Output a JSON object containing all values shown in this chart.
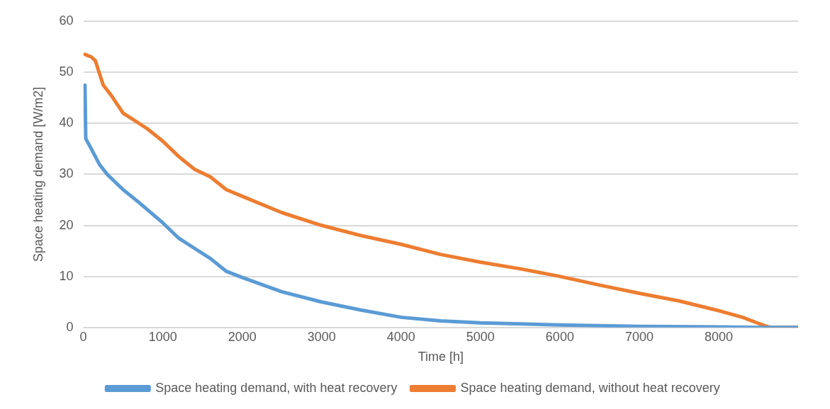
{
  "chart_data": {
    "type": "line",
    "xlabel": "Time [h]",
    "ylabel": "Space heating demand [W/m2]",
    "xlim": [
      0,
      9000
    ],
    "xticks": [
      0,
      1000,
      2000,
      3000,
      4000,
      5000,
      6000,
      7000,
      8000
    ],
    "ylim": [
      0,
      60
    ],
    "yticks": [
      0,
      10,
      20,
      30,
      40,
      50,
      60
    ],
    "grid": "y",
    "legend": "bottom",
    "marker": "none",
    "line_style": "solid",
    "series": [
      {
        "name": "Space heating demand, with heat recovery",
        "color": "#5b9bd5",
        "x": [
          20,
          30,
          100,
          200,
          300,
          500,
          700,
          1000,
          1200,
          1400,
          1600,
          1800,
          2000,
          2500,
          3000,
          3500,
          4000,
          4500,
          5000,
          6000,
          7000,
          8000,
          8500,
          9000
        ],
        "values": [
          47.5,
          37,
          35,
          32,
          30,
          27,
          24.5,
          20.5,
          17.5,
          15.5,
          13.5,
          11,
          9.8,
          7,
          5,
          3.4,
          2,
          1.3,
          0.9,
          0.5,
          0.2,
          0.1,
          0,
          0
        ]
      },
      {
        "name": "Space heating demand, without heat recovery",
        "color": "#ed7d31",
        "x": [
          20,
          100,
          150,
          250,
          350,
          500,
          800,
          1000,
          1200,
          1400,
          1600,
          1800,
          2000,
          2500,
          3000,
          3500,
          4000,
          4500,
          5000,
          5500,
          6000,
          6500,
          7000,
          7500,
          8000,
          8300,
          8500,
          8650,
          9000
        ],
        "values": [
          53.5,
          53,
          52.3,
          47.5,
          45.5,
          42,
          39,
          36.5,
          33.5,
          31,
          29.5,
          27,
          25.7,
          22.5,
          20,
          18,
          16.3,
          14.3,
          12.8,
          11.5,
          10,
          8.3,
          6.7,
          5.2,
          3.3,
          2,
          0.8,
          0,
          0
        ]
      }
    ]
  }
}
